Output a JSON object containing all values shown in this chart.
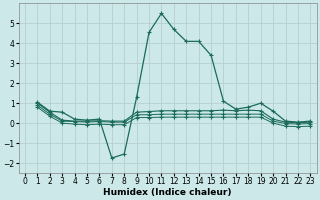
{
  "xlabel": "Humidex (Indice chaleur)",
  "background_color": "#cce8e8",
  "grid_color": "#b8cece",
  "line_color": "#1a6b5a",
  "xlim": [
    -0.5,
    23.5
  ],
  "ylim": [
    -2.5,
    6.0
  ],
  "xticks": [
    0,
    1,
    2,
    3,
    4,
    5,
    6,
    7,
    8,
    9,
    10,
    11,
    12,
    13,
    14,
    15,
    16,
    17,
    18,
    19,
    20,
    21,
    22,
    23
  ],
  "yticks": [
    -2,
    -1,
    0,
    1,
    2,
    3,
    4,
    5
  ],
  "series1": [
    [
      1,
      1.05
    ],
    [
      2,
      0.6
    ],
    [
      3,
      0.55
    ],
    [
      4,
      0.2
    ],
    [
      5,
      0.15
    ],
    [
      6,
      0.2
    ],
    [
      7,
      -1.75
    ],
    [
      8,
      -1.55
    ],
    [
      9,
      1.3
    ],
    [
      10,
      4.55
    ],
    [
      11,
      5.5
    ],
    [
      12,
      4.7
    ],
    [
      13,
      4.1
    ],
    [
      14,
      4.1
    ],
    [
      15,
      3.4
    ],
    [
      16,
      1.1
    ],
    [
      17,
      0.7
    ],
    [
      18,
      0.8
    ],
    [
      19,
      1.0
    ],
    [
      20,
      0.6
    ],
    [
      21,
      0.1
    ],
    [
      22,
      0.05
    ],
    [
      23,
      0.1
    ]
  ],
  "series2": [
    [
      1,
      1.0
    ],
    [
      2,
      0.55
    ],
    [
      3,
      0.15
    ],
    [
      4,
      0.1
    ],
    [
      5,
      0.1
    ],
    [
      6,
      0.12
    ],
    [
      7,
      0.1
    ],
    [
      8,
      0.1
    ],
    [
      9,
      0.55
    ],
    [
      10,
      0.58
    ],
    [
      11,
      0.62
    ],
    [
      12,
      0.62
    ],
    [
      13,
      0.62
    ],
    [
      14,
      0.62
    ],
    [
      15,
      0.62
    ],
    [
      16,
      0.65
    ],
    [
      17,
      0.62
    ],
    [
      18,
      0.65
    ],
    [
      19,
      0.62
    ],
    [
      20,
      0.2
    ],
    [
      21,
      0.05
    ],
    [
      22,
      0.02
    ],
    [
      23,
      0.05
    ]
  ],
  "series3": [
    [
      1,
      0.9
    ],
    [
      2,
      0.45
    ],
    [
      3,
      0.1
    ],
    [
      4,
      0.08
    ],
    [
      5,
      0.05
    ],
    [
      6,
      0.08
    ],
    [
      7,
      0.05
    ],
    [
      8,
      0.05
    ],
    [
      9,
      0.42
    ],
    [
      10,
      0.42
    ],
    [
      11,
      0.45
    ],
    [
      12,
      0.45
    ],
    [
      13,
      0.45
    ],
    [
      14,
      0.45
    ],
    [
      15,
      0.45
    ],
    [
      16,
      0.45
    ],
    [
      17,
      0.45
    ],
    [
      18,
      0.45
    ],
    [
      19,
      0.45
    ],
    [
      20,
      0.1
    ],
    [
      21,
      -0.02
    ],
    [
      22,
      -0.05
    ],
    [
      23,
      -0.02
    ]
  ],
  "series4": [
    [
      1,
      0.8
    ],
    [
      2,
      0.35
    ],
    [
      3,
      0.0
    ],
    [
      4,
      -0.05
    ],
    [
      5,
      -0.08
    ],
    [
      6,
      -0.05
    ],
    [
      7,
      -0.08
    ],
    [
      8,
      -0.08
    ],
    [
      9,
      0.28
    ],
    [
      10,
      0.28
    ],
    [
      11,
      0.3
    ],
    [
      12,
      0.3
    ],
    [
      13,
      0.3
    ],
    [
      14,
      0.3
    ],
    [
      15,
      0.3
    ],
    [
      16,
      0.3
    ],
    [
      17,
      0.3
    ],
    [
      18,
      0.3
    ],
    [
      19,
      0.3
    ],
    [
      20,
      0.0
    ],
    [
      21,
      -0.15
    ],
    [
      22,
      -0.18
    ],
    [
      23,
      -0.15
    ]
  ]
}
